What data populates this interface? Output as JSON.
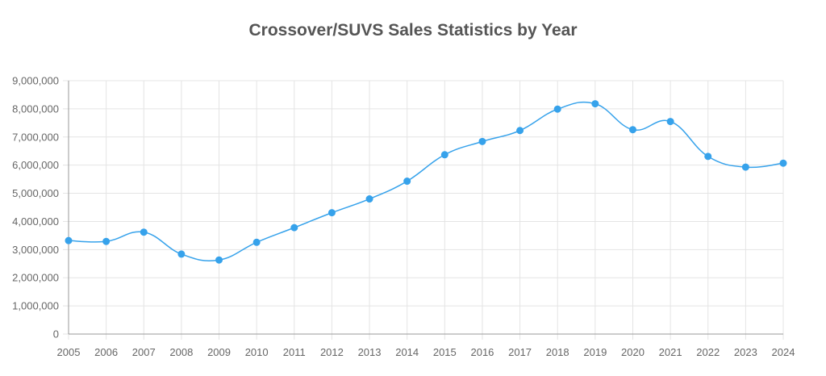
{
  "chart_data": {
    "type": "line",
    "title": "Crossover/SUVS Sales Statistics by Year",
    "xlabel": "",
    "ylabel": "",
    "categories": [
      "2005",
      "2006",
      "2007",
      "2008",
      "2009",
      "2010",
      "2011",
      "2012",
      "2013",
      "2014",
      "2015",
      "2016",
      "2017",
      "2018",
      "2019",
      "2020",
      "2021",
      "2022",
      "2023",
      "2024"
    ],
    "series": [
      {
        "values": [
          3320000,
          3290000,
          3620000,
          2840000,
          2630000,
          3260000,
          3780000,
          4310000,
          4800000,
          5430000,
          6370000,
          6840000,
          7230000,
          7990000,
          8180000,
          7260000,
          7550000,
          6310000,
          5930000,
          6070000
        ]
      }
    ],
    "ylim": [
      0,
      9000000
    ],
    "yticks": [
      0,
      1000000,
      2000000,
      3000000,
      4000000,
      5000000,
      6000000,
      7000000,
      8000000,
      9000000
    ],
    "ytick_labels": [
      "0",
      "1,000,000",
      "2,000,000",
      "3,000,000",
      "4,000,000",
      "5,000,000",
      "6,000,000",
      "7,000,000",
      "8,000,000",
      "9,000,000"
    ],
    "grid": true,
    "legend": "none",
    "line_color": "#36a2eb",
    "grid_color": "#e4e4e4"
  }
}
